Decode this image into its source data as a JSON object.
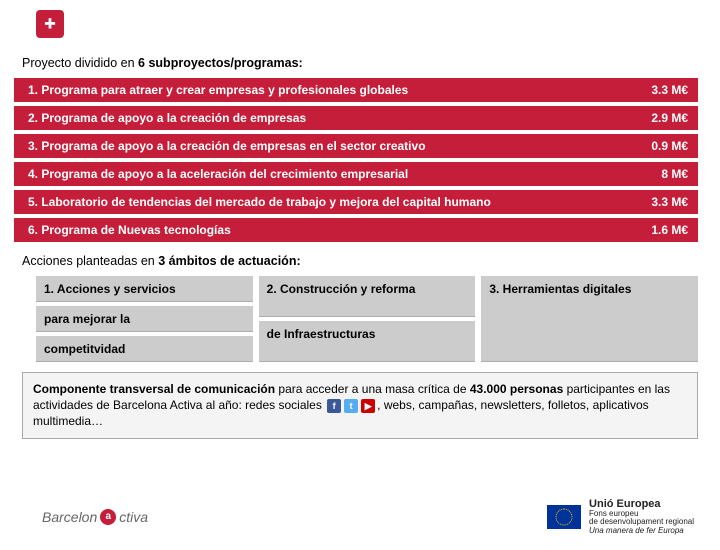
{
  "intro": {
    "prefix": "Proyecto dividido en ",
    "bold": "6 subproyectos/programas:"
  },
  "programs": [
    {
      "num": "1.",
      "name": "Programa para atraer y crear empresas y profesionales globales",
      "value": "3.3 M€"
    },
    {
      "num": "2.",
      "name": "Programa de apoyo a la creación de empresas",
      "value": "2.9 M€"
    },
    {
      "num": "3.",
      "name": "Programa de apoyo a la creación de empresas en el sector creativo",
      "value": "0.9 M€"
    },
    {
      "num": "4.",
      "name": "Programa de apoyo a la aceleración del crecimiento empresarial",
      "value": "8 M€"
    },
    {
      "num": "5.",
      "name": "Laboratorio de tendencias del mercado de trabajo y mejora del capital humano",
      "value": "3.3 M€"
    },
    {
      "num": "6.",
      "name": "Programa de Nuevas tecnologías",
      "value": "1.6 M€"
    }
  ],
  "ambitos_intro": {
    "prefix": "Acciones planteadas en ",
    "bold": "3 ámbitos de actuación:"
  },
  "ambitos": [
    {
      "line1": "1. Acciones y servicios",
      "line2": "para mejorar la",
      "line3": "competitvidad"
    },
    {
      "line1": "2.  Construcción y reforma",
      "line2": "de Infraestructuras",
      "line3": ""
    },
    {
      "line1": "3. Herramientas digitales",
      "line2": "",
      "line3": ""
    }
  ],
  "transversal": {
    "bold1": "Componente transversal de comunicación",
    "mid1": " para acceder a una masa crítica de ",
    "bold2": "43.000 personas",
    "mid2": " participantes en las actividades de Barcelona Activa al año: redes sociales ",
    "tail": ", webs, campañas, newsletters, folletos, aplicativos multimedia…"
  },
  "footer": {
    "ba_left": "Barcelon",
    "ba_right": "ctiva",
    "eu_title": "Unió Europea",
    "eu_line1": "Fons europeu",
    "eu_line2": "de desenvolupament regional",
    "eu_line3": "Una manera de fer Europa"
  },
  "colors": {
    "primary": "#c41e3a",
    "grey_box": "#cccccc",
    "panel_border": "#a8a8a8",
    "panel_bg": "#f4f4f4"
  }
}
